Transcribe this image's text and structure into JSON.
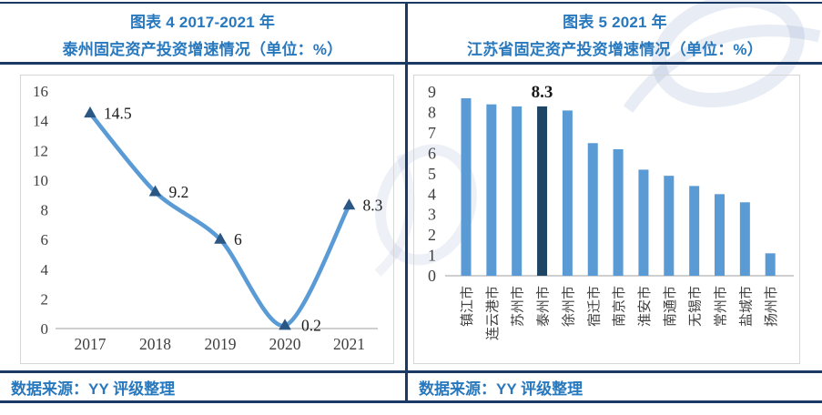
{
  "colors": {
    "accent_blue": "#2878BE",
    "border_navy": "#1B3A63",
    "line_blue": "#5B9BD5",
    "marker_navy": "#2A5783",
    "bar_blue": "#5B9BD5",
    "bar_highlight_navy": "#1F4564",
    "axis_text_gray": "#3F3F3F",
    "axis_line_gray": "#BFBFBF",
    "plot_border_gray": "#D6D6D6"
  },
  "panels": [
    {
      "title_line1": "图表 4 2017-2021 年",
      "title_line2": "泰州固定资产投资增速情况（单位：%）",
      "source": "数据来源：YY 评级整理"
    },
    {
      "title_line1": "图表 5 2021 年",
      "title_line2": "江苏省固定资产投资增速情况（单位：%）",
      "source": "数据来源：YY 评级整理"
    }
  ],
  "chart_data": [
    {
      "id": "taizhou-fai-growth-line",
      "type": "line",
      "title": "图表 4 2017-2021 年 泰州固定资产投资增速情况（单位：%）",
      "categories": [
        "2017",
        "2018",
        "2019",
        "2020",
        "2021"
      ],
      "values": [
        14.5,
        9.2,
        6,
        0.2,
        8.3
      ],
      "data_labels": [
        "14.5",
        "9.2",
        "6",
        "0.2",
        "8.3"
      ],
      "xlabel": "",
      "ylabel": "",
      "ylim": [
        0,
        16
      ],
      "yticks": [
        0,
        2,
        4,
        6,
        8,
        10,
        12,
        14,
        16
      ],
      "grid": false,
      "legend": "none",
      "line_color": "#5B9BD5",
      "marker": "triangle-up",
      "marker_color": "#2A5783",
      "smooth": true
    },
    {
      "id": "jiangsu-cities-fai-growth-bar",
      "type": "bar",
      "title": "图表 5 2021 年 江苏省固定资产投资增速情况（单位：%）",
      "categories": [
        "镇江市",
        "连云港市",
        "苏州市",
        "泰州市",
        "徐州市",
        "宿迁市",
        "南京市",
        "淮安市",
        "南通市",
        "无锡市",
        "常州市",
        "盐城市",
        "扬州市"
      ],
      "values": [
        8.7,
        8.4,
        8.3,
        8.3,
        8.1,
        6.5,
        6.2,
        5.2,
        4.9,
        4.4,
        4.0,
        3.6,
        1.1
      ],
      "highlight_index": 3,
      "highlight_label": "8.3",
      "xlabel": "",
      "ylabel": "",
      "ylim": [
        0,
        9
      ],
      "yticks": [
        0,
        1,
        2,
        3,
        4,
        5,
        6,
        7,
        8,
        9
      ],
      "grid": false,
      "legend": "none",
      "bar_color": "#5B9BD5",
      "highlight_color": "#1F4564",
      "xtick_rotation": -90
    }
  ]
}
